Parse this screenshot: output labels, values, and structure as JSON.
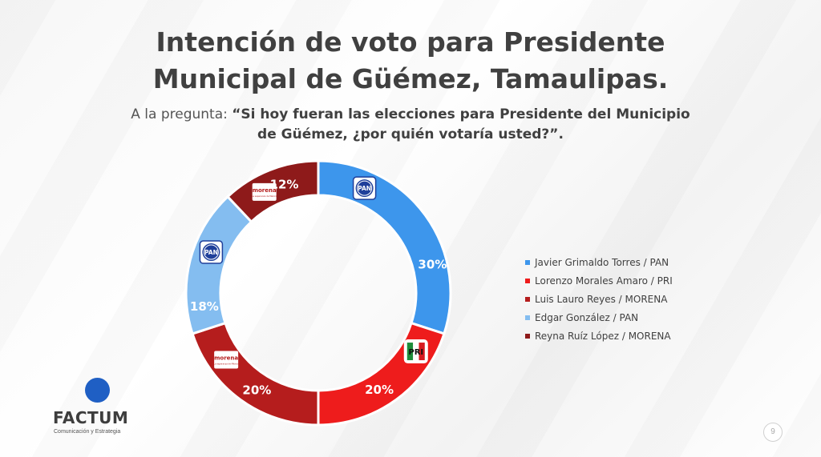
{
  "title_line1": "Intención de voto para Presidente",
  "title_line2": "Municipal de Güémez, Tamaulipas.",
  "subtitle_prefix": "A la pregunta: ",
  "subtitle_quote_line1": "“Si hoy fueran las elecciones para Presidente del Municipio",
  "subtitle_quote_line2": "de Güémez, ¿por quién votaría usted?”.",
  "chart_data": {
    "type": "pie",
    "donut": true,
    "title": "Intención de voto para Presidente Municipal de Güémez, Tamaulipas.",
    "legend_position": "right",
    "slices": [
      {
        "label": "Javier Grimaldo Torres / PAN",
        "value": 30,
        "value_label": "30%",
        "color": "#3d96ec",
        "party_logo": "PAN"
      },
      {
        "label": "Lorenzo Morales Amaro / PRI",
        "value": 20,
        "value_label": "20%",
        "color": "#ee1c1c",
        "party_logo": "PRI"
      },
      {
        "label": "Luis Lauro Reyes / MORENA",
        "value": 20,
        "value_label": "20%",
        "color": "#b51d1d",
        "party_logo": "morena"
      },
      {
        "label": "Edgar González / PAN",
        "value": 18,
        "value_label": "18%",
        "color": "#84bdf0",
        "party_logo": "PAN"
      },
      {
        "label": "Reyna Ruíz López / MORENA",
        "value": 12,
        "value_label": "12%",
        "color": "#8e1a1a",
        "party_logo": "morena"
      }
    ]
  },
  "logos": {
    "pan": "PAN",
    "pri": "PRI",
    "morena": "morena",
    "morena_tagline": "La esperanza de México"
  },
  "brand": {
    "name": "FACTUM",
    "tagline": "Comunicación y Estrategia",
    "dot_color": "#1f5fc4"
  },
  "page_number": "9"
}
